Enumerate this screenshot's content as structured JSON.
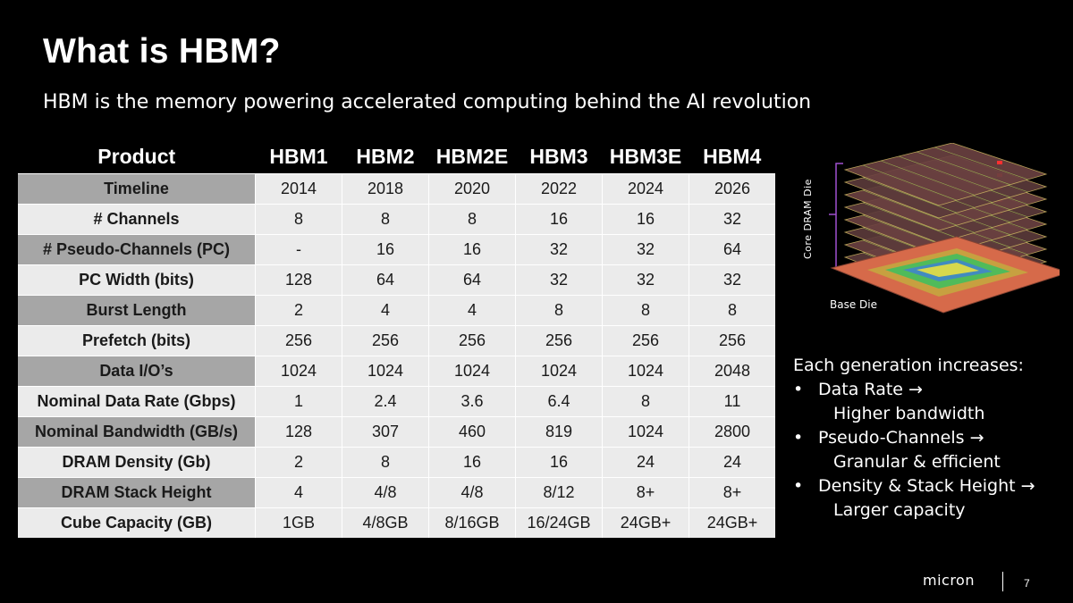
{
  "title": "What is HBM?",
  "subtitle": "HBM is the memory powering accelerated computing behind the AI revolution",
  "table": {
    "header": [
      "Product",
      "HBM1",
      "HBM2",
      "HBM2E",
      "HBM3",
      "HBM3E",
      "HBM4"
    ],
    "rows": [
      {
        "label": "Timeline",
        "values": [
          "2014",
          "2018",
          "2020",
          "2022",
          "2024",
          "2026"
        ]
      },
      {
        "label": "# Channels",
        "values": [
          "8",
          "8",
          "8",
          "16",
          "16",
          "32"
        ]
      },
      {
        "label": "# Pseudo-Channels (PC)",
        "values": [
          "-",
          "16",
          "16",
          "32",
          "32",
          "64"
        ]
      },
      {
        "label": "PC Width (bits)",
        "values": [
          "128",
          "64",
          "64",
          "32",
          "32",
          "32"
        ]
      },
      {
        "label": "Burst Length",
        "values": [
          "2",
          "4",
          "4",
          "8",
          "8",
          "8"
        ]
      },
      {
        "label": "Prefetch (bits)",
        "values": [
          "256",
          "256",
          "256",
          "256",
          "256",
          "256"
        ]
      },
      {
        "label": "Data I/O’s",
        "values": [
          "1024",
          "1024",
          "1024",
          "1024",
          "1024",
          "2048"
        ]
      },
      {
        "label": "Nominal Data Rate (Gbps)",
        "values": [
          "1",
          "2.4",
          "3.6",
          "6.4",
          "8",
          "11"
        ]
      },
      {
        "label": "Nominal Bandwidth (GB/s)",
        "values": [
          "128",
          "307",
          "460",
          "819",
          "1024",
          "2800"
        ]
      },
      {
        "label": "DRAM Density (Gb)",
        "values": [
          "2",
          "8",
          "16",
          "16",
          "24",
          "24"
        ]
      },
      {
        "label": "DRAM Stack Height",
        "values": [
          "4",
          "4/8",
          "4/8",
          "8/12",
          "8+",
          "8+"
        ]
      },
      {
        "label": "Cube Capacity (GB)",
        "values": [
          "1GB",
          "4/8GB",
          "8/16GB",
          "16/24GB",
          "24GB+",
          "24GB+"
        ]
      }
    ]
  },
  "diagram": {
    "core_label": "Core DRAM Die",
    "base_label": "Base Die"
  },
  "generations": {
    "heading": "Each generation increases:",
    "items": [
      {
        "label": "Data Rate →",
        "sub": "Higher bandwidth"
      },
      {
        "label": "Pseudo-Channels →",
        "sub": "Granular & efficient"
      },
      {
        "label": "Density & Stack Height →",
        "sub": "Larger capacity"
      }
    ]
  },
  "footer": {
    "logo": "micron",
    "page": "7"
  }
}
